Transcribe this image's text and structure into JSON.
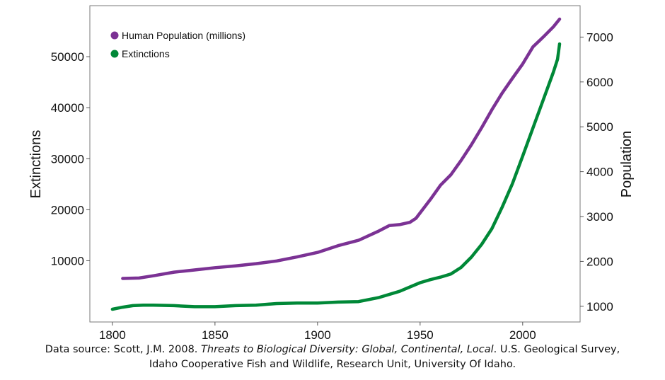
{
  "chart_data": {
    "type": "line",
    "x_axis": {
      "label": "",
      "range": [
        1789,
        2028
      ],
      "ticks": [
        1800,
        1850,
        1900,
        1950,
        2000
      ]
    },
    "y_left": {
      "label": "Extinctions",
      "range": [
        -2000,
        60000
      ],
      "ticks": [
        10000,
        20000,
        30000,
        40000,
        50000
      ]
    },
    "y_right": {
      "label": "Population",
      "range": [
        650,
        7700
      ],
      "ticks": [
        1000,
        2000,
        3000,
        4000,
        5000,
        6000,
        7000
      ]
    },
    "legend_position": "top-left",
    "grid": false,
    "series": [
      {
        "name": "Human Population (millions)",
        "axis": "right",
        "color": "#7b3294",
        "x": [
          1805,
          1813,
          1820,
          1830,
          1840,
          1850,
          1860,
          1870,
          1880,
          1890,
          1900,
          1910,
          1920,
          1930,
          1935,
          1940,
          1945,
          1948,
          1950,
          1955,
          1960,
          1965,
          1970,
          1975,
          1980,
          1985,
          1990,
          1995,
          2000,
          2005,
          2010,
          2015,
          2018
        ],
        "values": [
          1620,
          1630,
          1680,
          1760,
          1810,
          1860,
          1900,
          1950,
          2010,
          2100,
          2200,
          2350,
          2470,
          2680,
          2800,
          2820,
          2870,
          2960,
          3080,
          3380,
          3700,
          3930,
          4250,
          4600,
          4980,
          5380,
          5750,
          6080,
          6400,
          6780,
          7000,
          7230,
          7400
        ]
      },
      {
        "name": "Extinctions",
        "axis": "left",
        "color": "#008837",
        "x": [
          1800,
          1805,
          1810,
          1815,
          1820,
          1830,
          1840,
          1850,
          1860,
          1870,
          1880,
          1890,
          1900,
          1910,
          1920,
          1930,
          1940,
          1950,
          1955,
          1960,
          1965,
          1970,
          1975,
          1980,
          1985,
          1990,
          1995,
          2000,
          2005,
          2010,
          2015,
          2017,
          2018
        ],
        "values": [
          500,
          900,
          1200,
          1300,
          1300,
          1200,
          1000,
          1000,
          1200,
          1300,
          1600,
          1700,
          1700,
          1900,
          2000,
          2800,
          4000,
          5700,
          6300,
          6800,
          7400,
          8700,
          10700,
          13200,
          16300,
          20500,
          25100,
          30500,
          36000,
          41500,
          47000,
          49500,
          52500
        ]
      }
    ]
  },
  "caption": {
    "prefix": "Data source: Scott, J.M. 2008. ",
    "title": "Threats to Biological Diversity: Global, Continental, Local",
    "suffix": ". U.S. Geological Survey,",
    "line2": "Idaho Cooperative Fish and Wildlife, Research Unit, University Of Idaho."
  }
}
